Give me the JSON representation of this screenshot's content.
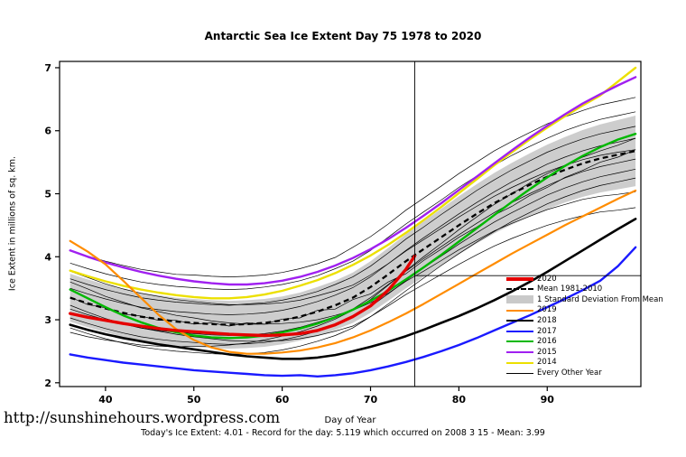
{
  "footer": {
    "url": "http://sunshinehours.wordpress.com",
    "caption": "Today's Ice Extent: 4.01  - Record for the day: 5.119 which occurred on 2008 3 15  - Mean: 3.99"
  },
  "chart_data": {
    "type": "line",
    "title": "Antarctic Sea Ice Extent Day 75 1978 to 2020",
    "xlabel": "Day of Year",
    "ylabel": "Ice Extent in millions of sq. km.",
    "x_range": [
      34.8,
      100.6
    ],
    "y_range": [
      1.94,
      7.1
    ],
    "x_ticks": [
      40,
      50,
      60,
      70,
      80,
      90
    ],
    "y_ticks": [
      2,
      3,
      4,
      5,
      6,
      7
    ],
    "x": [
      36,
      38,
      40,
      42,
      44,
      46,
      48,
      50,
      52,
      54,
      56,
      58,
      60,
      62,
      64,
      66,
      68,
      70,
      72,
      74,
      76,
      78,
      80,
      82,
      84,
      86,
      88,
      90,
      92,
      94,
      96,
      98,
      100
    ],
    "band": {
      "label": "1 Standard Deviation From Mean",
      "color": "#c9c9c9",
      "upper": [
        3.73,
        3.64,
        3.56,
        3.49,
        3.43,
        3.39,
        3.35,
        3.33,
        3.31,
        3.3,
        3.31,
        3.33,
        3.37,
        3.43,
        3.52,
        3.62,
        3.75,
        3.93,
        4.14,
        4.36,
        4.56,
        4.76,
        4.96,
        5.15,
        5.33,
        5.49,
        5.64,
        5.78,
        5.9,
        6.01,
        6.1,
        6.17,
        6.24
      ],
      "lower": [
        2.97,
        2.88,
        2.8,
        2.73,
        2.67,
        2.63,
        2.59,
        2.57,
        2.55,
        2.54,
        2.55,
        2.57,
        2.61,
        2.67,
        2.74,
        2.84,
        2.95,
        3.11,
        3.3,
        3.5,
        3.68,
        3.86,
        4.04,
        4.21,
        4.37,
        4.51,
        4.64,
        4.76,
        4.86,
        4.95,
        5.02,
        5.07,
        5.12
      ]
    },
    "mean": {
      "label": "Mean 1981-2010",
      "color": "#000000",
      "dashed": true,
      "values": [
        3.35,
        3.26,
        3.18,
        3.11,
        3.05,
        3.01,
        2.97,
        2.95,
        2.93,
        2.92,
        2.93,
        2.95,
        2.99,
        3.05,
        3.13,
        3.23,
        3.35,
        3.52,
        3.72,
        3.93,
        4.12,
        4.31,
        4.5,
        4.68,
        4.85,
        5.0,
        5.14,
        5.27,
        5.38,
        5.48,
        5.56,
        5.62,
        5.68
      ]
    },
    "series": [
      {
        "name": "2020",
        "color": "#e50000",
        "width": 3.4,
        "x": [
          36,
          38,
          40,
          42,
          44,
          46,
          48,
          50,
          52,
          54,
          56,
          58,
          60,
          62,
          64,
          66,
          68,
          70,
          72,
          74,
          75
        ],
        "values": [
          3.1,
          3.04,
          2.99,
          2.94,
          2.9,
          2.86,
          2.83,
          2.81,
          2.79,
          2.77,
          2.76,
          2.75,
          2.76,
          2.78,
          2.83,
          2.92,
          3.05,
          3.22,
          3.47,
          3.8,
          4.01
        ]
      },
      {
        "name": "2019",
        "color": "#ff8c00",
        "width": 2.2,
        "values": [
          4.25,
          4.08,
          3.88,
          3.62,
          3.35,
          3.08,
          2.85,
          2.68,
          2.56,
          2.49,
          2.46,
          2.46,
          2.48,
          2.51,
          2.56,
          2.63,
          2.72,
          2.83,
          2.96,
          3.1,
          3.25,
          3.41,
          3.57,
          3.73,
          3.89,
          4.05,
          4.2,
          4.35,
          4.5,
          4.64,
          4.78,
          4.92,
          5.05
        ]
      },
      {
        "name": "2018",
        "color": "#000000",
        "width": 2.6,
        "values": [
          2.92,
          2.84,
          2.77,
          2.71,
          2.66,
          2.61,
          2.57,
          2.53,
          2.49,
          2.45,
          2.42,
          2.4,
          2.38,
          2.38,
          2.4,
          2.44,
          2.5,
          2.57,
          2.65,
          2.74,
          2.84,
          2.95,
          3.06,
          3.18,
          3.31,
          3.45,
          3.6,
          3.76,
          3.93,
          4.1,
          4.27,
          4.44,
          4.6
        ]
      },
      {
        "name": "2017",
        "color": "#1a1aff",
        "width": 2.4,
        "values": [
          2.45,
          2.4,
          2.36,
          2.32,
          2.29,
          2.26,
          2.23,
          2.2,
          2.18,
          2.16,
          2.14,
          2.12,
          2.11,
          2.12,
          2.1,
          2.12,
          2.15,
          2.2,
          2.26,
          2.33,
          2.41,
          2.5,
          2.6,
          2.71,
          2.83,
          2.95,
          3.07,
          3.2,
          3.33,
          3.47,
          3.62,
          3.85,
          4.15
        ]
      },
      {
        "name": "2016",
        "color": "#00b800",
        "width": 2.4,
        "values": [
          3.48,
          3.34,
          3.2,
          3.07,
          2.96,
          2.87,
          2.8,
          2.75,
          2.72,
          2.71,
          2.72,
          2.75,
          2.8,
          2.86,
          2.94,
          3.04,
          3.16,
          3.3,
          3.46,
          3.64,
          3.83,
          4.03,
          4.24,
          4.45,
          4.66,
          4.87,
          5.07,
          5.26,
          5.44,
          5.6,
          5.74,
          5.86,
          5.95
        ]
      },
      {
        "name": "2015",
        "color": "#a020f0",
        "width": 2.4,
        "values": [
          4.1,
          4.0,
          3.91,
          3.83,
          3.76,
          3.7,
          3.65,
          3.61,
          3.58,
          3.56,
          3.56,
          3.58,
          3.62,
          3.68,
          3.76,
          3.86,
          3.98,
          4.12,
          4.28,
          4.46,
          4.65,
          4.85,
          5.06,
          5.27,
          5.48,
          5.69,
          5.89,
          6.08,
          6.26,
          6.43,
          6.58,
          6.72,
          6.85
        ]
      },
      {
        "name": "2014",
        "color": "#ece000",
        "width": 2.4,
        "values": [
          3.78,
          3.69,
          3.61,
          3.54,
          3.48,
          3.43,
          3.39,
          3.36,
          3.34,
          3.34,
          3.36,
          3.4,
          3.46,
          3.54,
          3.63,
          3.74,
          3.87,
          4.02,
          4.19,
          4.38,
          4.58,
          4.79,
          5.01,
          5.23,
          5.45,
          5.66,
          5.86,
          6.05,
          6.23,
          6.4,
          6.56,
          6.78,
          7.0
        ]
      }
    ],
    "other_years": {
      "label": "Every Other Year",
      "color": "#000000",
      "width": 0.7,
      "lines": [
        [
          4.1,
          4.01,
          3.93,
          3.86,
          3.8,
          3.76,
          3.72,
          3.71,
          3.69,
          3.68,
          3.69,
          3.71,
          3.75,
          3.81,
          3.89,
          3.99,
          4.15,
          4.32,
          4.52,
          4.74,
          4.93,
          5.12,
          5.32,
          5.5,
          5.68,
          5.83,
          5.97,
          6.11,
          6.22,
          6.32,
          6.41,
          6.47,
          6.53
        ],
        [
          3.9,
          3.81,
          3.73,
          3.66,
          3.6,
          3.56,
          3.53,
          3.51,
          3.49,
          3.48,
          3.49,
          3.52,
          3.56,
          3.62,
          3.7,
          3.81,
          3.93,
          4.1,
          4.31,
          4.52,
          4.71,
          4.9,
          5.1,
          5.28,
          5.45,
          5.61,
          5.75,
          5.88,
          6.0,
          6.1,
          6.18,
          6.24,
          6.3
        ],
        [
          3.65,
          3.56,
          3.48,
          3.41,
          3.35,
          3.31,
          3.28,
          3.26,
          3.24,
          3.23,
          3.25,
          3.27,
          3.31,
          3.37,
          3.45,
          3.56,
          3.68,
          3.85,
          4.06,
          4.28,
          4.47,
          4.67,
          4.86,
          5.05,
          5.22,
          5.38,
          5.52,
          5.66,
          5.77,
          5.87,
          5.95,
          6.01,
          6.07
        ],
        [
          3.5,
          3.41,
          3.33,
          3.26,
          3.2,
          3.16,
          3.13,
          3.11,
          3.09,
          3.08,
          3.09,
          3.11,
          3.15,
          3.21,
          3.29,
          3.39,
          3.51,
          3.68,
          3.89,
          4.1,
          4.3,
          4.49,
          4.68,
          4.86,
          5.03,
          5.19,
          5.33,
          5.47,
          5.58,
          5.68,
          5.76,
          5.82,
          5.88
        ],
        [
          3.36,
          3.24,
          3.19,
          3.09,
          3.06,
          2.99,
          2.99,
          2.93,
          2.95,
          2.9,
          2.95,
          2.93,
          3.01,
          3.03,
          3.15,
          3.17,
          3.32,
          3.41,
          3.6,
          3.73,
          3.94,
          4.12,
          4.31,
          4.47,
          4.66,
          4.8,
          4.97,
          5.1,
          5.26,
          5.37,
          5.5,
          5.58,
          5.7
        ],
        [
          3.17,
          3.08,
          3.0,
          2.93,
          2.87,
          2.83,
          2.8,
          2.78,
          2.76,
          2.75,
          2.76,
          2.78,
          2.82,
          2.88,
          2.96,
          3.05,
          3.17,
          3.35,
          3.56,
          3.77,
          3.97,
          4.16,
          4.35,
          4.53,
          4.7,
          4.86,
          5.0,
          5.13,
          5.25,
          5.35,
          5.43,
          5.49,
          5.55
        ],
        [
          3.03,
          2.94,
          2.86,
          2.79,
          2.73,
          2.69,
          2.66,
          2.64,
          2.62,
          2.61,
          2.62,
          2.64,
          2.68,
          2.74,
          2.82,
          2.92,
          3.04,
          3.21,
          3.41,
          3.62,
          3.82,
          4.01,
          4.2,
          4.38,
          4.55,
          4.7,
          4.84,
          4.98,
          5.09,
          5.19,
          5.27,
          5.33,
          5.39
        ],
        [
          2.87,
          2.78,
          2.7,
          2.63,
          2.57,
          2.53,
          2.5,
          2.48,
          2.46,
          2.45,
          2.46,
          2.48,
          2.52,
          2.58,
          2.66,
          2.75,
          2.87,
          3.05,
          3.25,
          3.46,
          3.66,
          3.86,
          4.05,
          4.23,
          4.4,
          4.56,
          4.7,
          4.84,
          4.95,
          5.05,
          5.13,
          5.19,
          5.25
        ],
        [
          3.6,
          3.49,
          3.37,
          3.28,
          3.19,
          3.13,
          3.07,
          3.03,
          2.98,
          2.95,
          2.93,
          2.93,
          2.94,
          2.96,
          3.0,
          3.07,
          3.15,
          3.27,
          3.42,
          3.61,
          3.77,
          3.94,
          4.11,
          4.26,
          4.41,
          4.53,
          4.64,
          4.75,
          4.83,
          4.91,
          4.96,
          4.99,
          5.03
        ],
        [
          2.8,
          2.73,
          2.68,
          2.64,
          2.6,
          2.58,
          2.57,
          2.58,
          2.58,
          2.6,
          2.63,
          2.68,
          2.74,
          2.81,
          2.9,
          3.01,
          3.15,
          3.32,
          3.55,
          3.78,
          4.0,
          4.21,
          4.43,
          4.63,
          4.83,
          5.0,
          5.17,
          5.32,
          5.45,
          5.58,
          5.68,
          5.77,
          5.88
        ],
        [
          3.77,
          3.67,
          3.57,
          3.49,
          3.42,
          3.37,
          3.32,
          3.29,
          3.26,
          3.24,
          3.24,
          3.25,
          3.27,
          3.31,
          3.38,
          3.46,
          3.55,
          3.71,
          3.89,
          4.09,
          4.27,
          4.45,
          4.63,
          4.8,
          4.96,
          5.1,
          5.23,
          5.35,
          5.45,
          5.54,
          5.61,
          5.66,
          5.7
        ],
        [
          3.23,
          3.12,
          3.02,
          2.94,
          2.87,
          2.82,
          2.77,
          2.73,
          2.7,
          2.67,
          2.66,
          2.66,
          2.67,
          2.7,
          2.75,
          2.82,
          2.9,
          3.05,
          3.22,
          3.4,
          3.56,
          3.72,
          3.88,
          4.03,
          4.17,
          4.29,
          4.4,
          4.5,
          4.58,
          4.65,
          4.71,
          4.74,
          4.78
        ]
      ]
    },
    "crosshair": {
      "day": 75,
      "value": 3.7
    },
    "legend": [
      {
        "label": "2020",
        "swatch": "line",
        "color": "#e50000",
        "thick": true
      },
      {
        "label": "Mean 1981-2010",
        "swatch": "dashed-line",
        "color": "#000000"
      },
      {
        "label": "1 Standard Deviation From Mean",
        "swatch": "patch",
        "color": "#c9c9c9"
      },
      {
        "label": "2019",
        "swatch": "line",
        "color": "#ff8c00"
      },
      {
        "label": "2018",
        "swatch": "line",
        "color": "#000000"
      },
      {
        "label": "2017",
        "swatch": "line",
        "color": "#1a1aff"
      },
      {
        "label": "2016",
        "swatch": "line",
        "color": "#00b800"
      },
      {
        "label": "2015",
        "swatch": "line",
        "color": "#a020f0"
      },
      {
        "label": "2014",
        "swatch": "line",
        "color": "#ece000"
      },
      {
        "label": "Every Other Year",
        "swatch": "thin-line",
        "color": "#000000"
      }
    ]
  }
}
